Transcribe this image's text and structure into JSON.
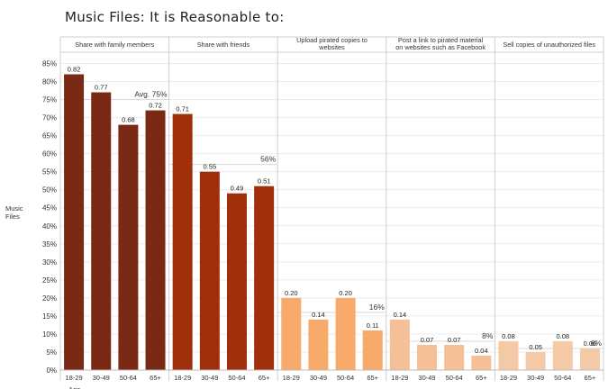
{
  "chart_data": {
    "type": "bar",
    "title": "Music Files: It is Reasonable to:",
    "ylabel": "Music\nFiles",
    "xlabel": "Age",
    "ylim": [
      0,
      0.85
    ],
    "yticks": [
      "0%",
      "5%",
      "10%",
      "15%",
      "20%",
      "25%",
      "30%",
      "35%",
      "40%",
      "45%",
      "50%",
      "55%",
      "60%",
      "65%",
      "70%",
      "75%",
      "80%",
      "85%"
    ],
    "grid": true,
    "categories": [
      "18-29",
      "30-49",
      "50-64",
      "65+"
    ],
    "groups": [
      {
        "name": "Share with family members",
        "values": [
          0.82,
          0.77,
          0.68,
          0.72
        ],
        "labels": [
          "0.82",
          "0.77",
          "0.68",
          "0.72"
        ],
        "average": 0.75,
        "average_label": "Avg. 75%",
        "color": "#7a2a14"
      },
      {
        "name": "Share with friends",
        "values": [
          0.71,
          0.55,
          0.49,
          0.51
        ],
        "labels": [
          "0.71",
          "0.55",
          "0.49",
          "0.51"
        ],
        "average": 0.57,
        "average_label": "56%",
        "color": "#a0300c"
      },
      {
        "name": "Upload pirated copies to websites",
        "values": [
          0.2,
          0.14,
          0.2,
          0.11
        ],
        "labels": [
          "0.20",
          "0.14",
          "0.20",
          "0.11"
        ],
        "average": 0.16,
        "average_label": "16%",
        "color": "#f7aa6a"
      },
      {
        "name": "Post a link to pirated material on websites such as Facebook",
        "values": [
          0.14,
          0.07,
          0.07,
          0.04
        ],
        "labels": [
          "0.14",
          "0.07",
          "0.07",
          "0.04"
        ],
        "average": 0.08,
        "average_label": "8%",
        "color": "#f5c098"
      },
      {
        "name": "Sell copies of unauthorized files",
        "values": [
          0.08,
          0.05,
          0.08,
          0.06
        ],
        "labels": [
          "0.08",
          "0.05",
          "0.08",
          "0.06"
        ],
        "average": 0.06,
        "average_label": "6%",
        "color": "#f3c9a6"
      }
    ]
  }
}
